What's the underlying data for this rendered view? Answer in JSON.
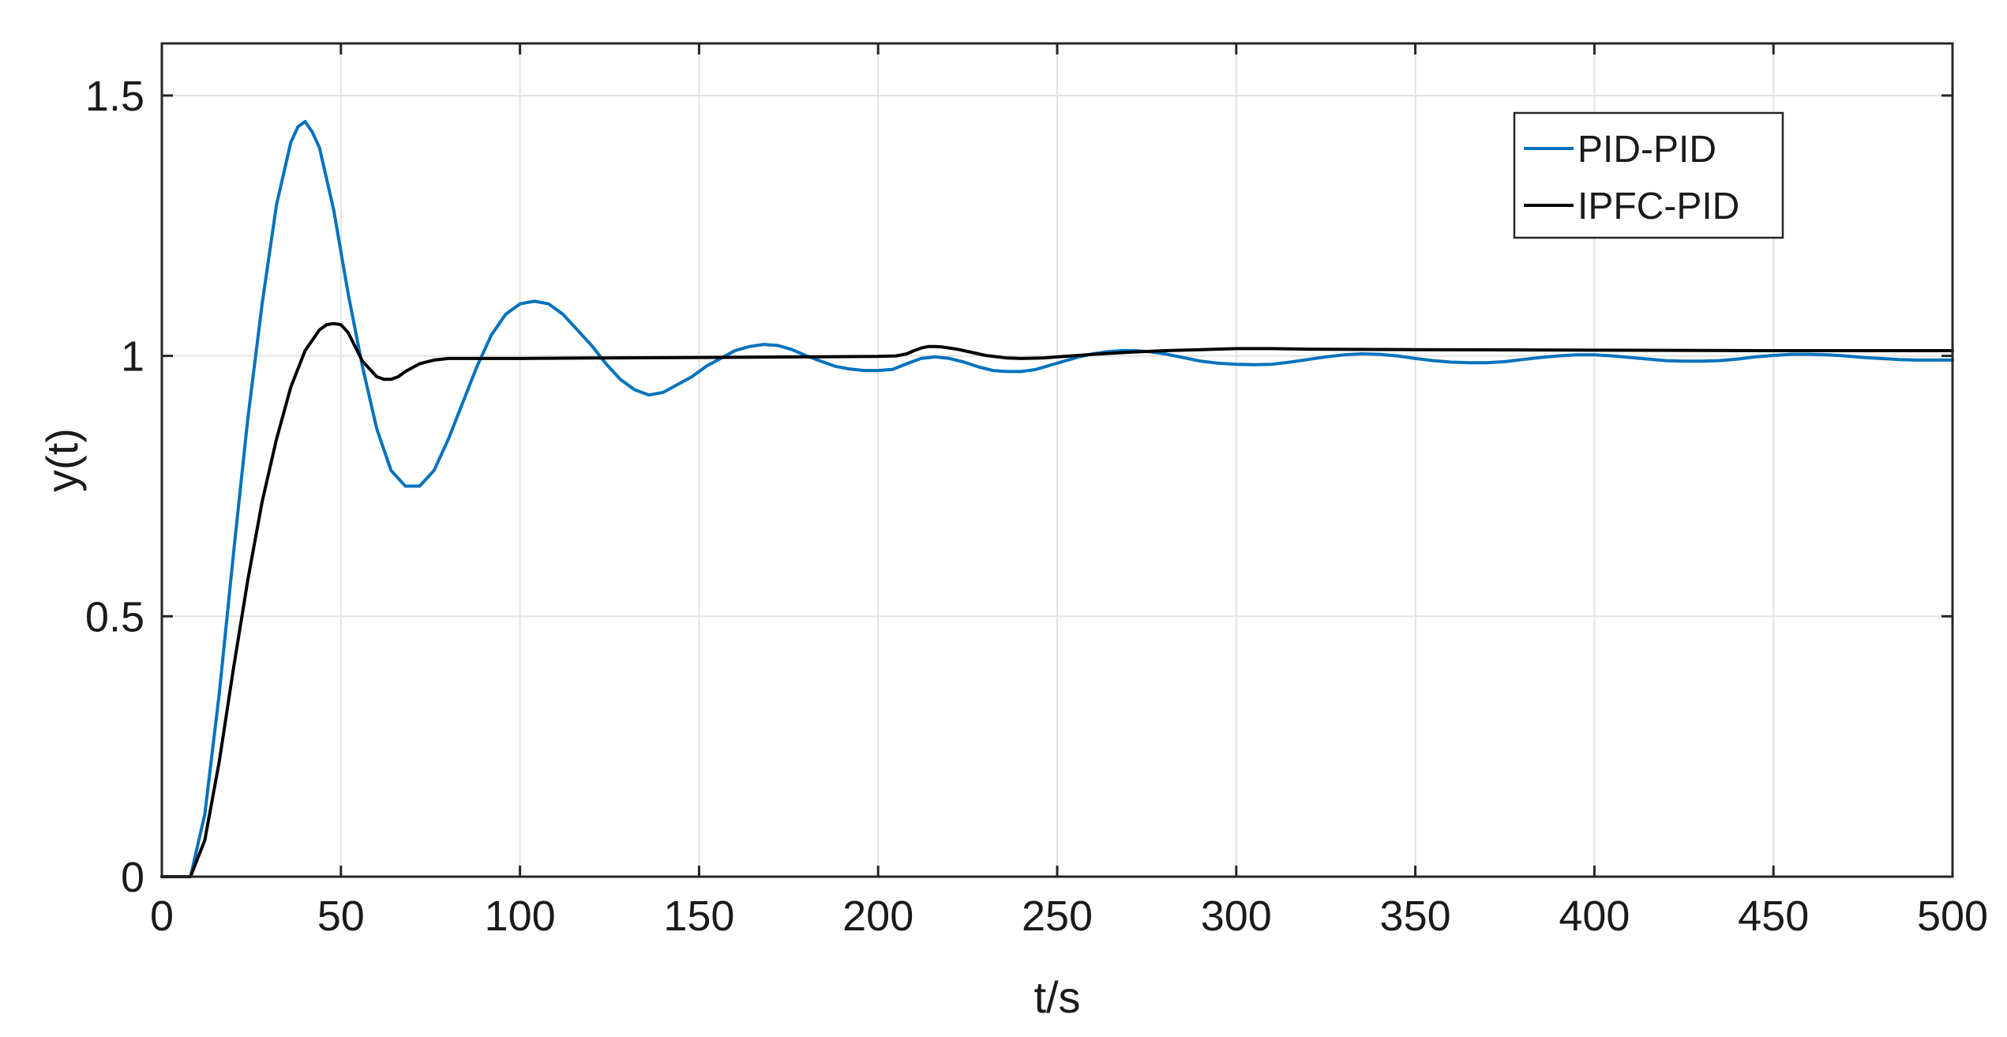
{
  "chart_data": {
    "type": "line",
    "title": "",
    "xlabel": "t/s",
    "ylabel": "y(t)",
    "xlim": [
      0,
      500
    ],
    "ylim": [
      0,
      1.6
    ],
    "xticks": [
      0,
      50,
      100,
      150,
      200,
      250,
      300,
      350,
      400,
      450,
      500
    ],
    "yticks": [
      0,
      0.5,
      1,
      1.5
    ],
    "xtick_labels": [
      "0",
      "50",
      "100",
      "150",
      "200",
      "250",
      "300",
      "350",
      "400",
      "450",
      "500"
    ],
    "ytick_labels": [
      "0",
      "0.5",
      "1",
      "1.5"
    ],
    "grid": true,
    "legend_position": "top-right",
    "series": [
      {
        "name": "PID-PID",
        "color": "#0072BD",
        "x": [
          0,
          8,
          12,
          16,
          20,
          24,
          28,
          32,
          36,
          38,
          40,
          42,
          44,
          48,
          52,
          56,
          60,
          64,
          68,
          72,
          76,
          80,
          84,
          88,
          92,
          96,
          100,
          104,
          108,
          112,
          116,
          120,
          124,
          128,
          132,
          136,
          140,
          144,
          148,
          152,
          156,
          160,
          164,
          168,
          172,
          176,
          180,
          184,
          188,
          192,
          196,
          200,
          204,
          208,
          212,
          216,
          220,
          224,
          228,
          232,
          236,
          240,
          244,
          248,
          252,
          256,
          260,
          264,
          268,
          272,
          276,
          280,
          285,
          290,
          295,
          300,
          305,
          310,
          315,
          320,
          325,
          330,
          335,
          340,
          345,
          350,
          355,
          360,
          365,
          370,
          375,
          380,
          385,
          390,
          395,
          400,
          405,
          410,
          415,
          420,
          425,
          430,
          435,
          440,
          445,
          450,
          455,
          460,
          465,
          470,
          475,
          480,
          485,
          490,
          495,
          500
        ],
        "y": [
          0,
          0,
          0.12,
          0.35,
          0.62,
          0.88,
          1.1,
          1.29,
          1.41,
          1.44,
          1.45,
          1.43,
          1.4,
          1.28,
          1.12,
          0.98,
          0.86,
          0.78,
          0.75,
          0.75,
          0.78,
          0.84,
          0.91,
          0.98,
          1.04,
          1.08,
          1.1,
          1.105,
          1.1,
          1.08,
          1.05,
          1.02,
          0.985,
          0.955,
          0.935,
          0.925,
          0.93,
          0.945,
          0.96,
          0.98,
          0.995,
          1.01,
          1.018,
          1.022,
          1.02,
          1.012,
          1.0,
          0.99,
          0.98,
          0.975,
          0.972,
          0.972,
          0.974,
          0.985,
          0.995,
          0.998,
          0.995,
          0.988,
          0.979,
          0.972,
          0.97,
          0.97,
          0.974,
          0.982,
          0.99,
          0.998,
          1.004,
          1.008,
          1.01,
          1.01,
          1.008,
          1.004,
          0.997,
          0.99,
          0.986,
          0.984,
          0.983,
          0.984,
          0.988,
          0.993,
          0.998,
          1.002,
          1.004,
          1.003,
          1.0,
          0.995,
          0.991,
          0.988,
          0.987,
          0.987,
          0.989,
          0.993,
          0.997,
          1.0,
          1.002,
          1.002,
          1.0,
          0.997,
          0.994,
          0.991,
          0.99,
          0.99,
          0.991,
          0.994,
          0.998,
          1.001,
          1.003,
          1.003,
          1.002,
          1.0,
          0.997,
          0.995,
          0.993,
          0.992,
          0.992,
          0.992
        ]
      },
      {
        "name": "IPFC-PID",
        "color": "#000000",
        "x": [
          0,
          8,
          12,
          16,
          20,
          24,
          28,
          32,
          36,
          40,
          44,
          46,
          48,
          50,
          52,
          56,
          60,
          62,
          64,
          66,
          68,
          72,
          76,
          80,
          90,
          100,
          120,
          150,
          180,
          200,
          205,
          208,
          210,
          212,
          214,
          216,
          218,
          222,
          226,
          230,
          236,
          240,
          246,
          250,
          256,
          260,
          270,
          280,
          290,
          300,
          310,
          320,
          350,
          400,
          450,
          500
        ],
        "y": [
          0,
          0,
          0.07,
          0.22,
          0.4,
          0.57,
          0.72,
          0.84,
          0.94,
          1.01,
          1.05,
          1.06,
          1.062,
          1.06,
          1.045,
          0.99,
          0.96,
          0.955,
          0.955,
          0.96,
          0.97,
          0.985,
          0.992,
          0.995,
          0.995,
          0.995,
          0.996,
          0.997,
          0.998,
          0.999,
          1.0,
          1.004,
          1.01,
          1.015,
          1.018,
          1.018,
          1.017,
          1.013,
          1.007,
          1.001,
          0.996,
          0.995,
          0.996,
          0.998,
          1.001,
          1.003,
          1.007,
          1.01,
          1.012,
          1.014,
          1.014,
          1.013,
          1.012,
          1.011,
          1.01,
          1.01
        ]
      }
    ]
  }
}
